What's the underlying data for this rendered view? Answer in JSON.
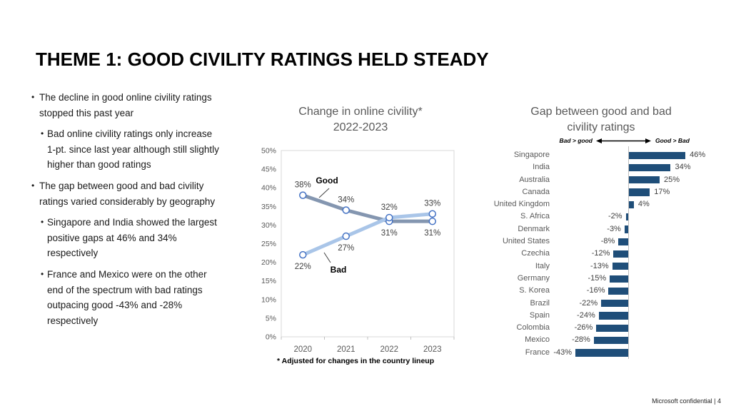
{
  "slide": {
    "title": {
      "bold": "THEME 1:",
      "rest": " GOOD CIVILITY RATINGS HELD STEADY"
    },
    "footer": "Microsoft confidential | 4"
  },
  "bullets": [
    {
      "level": 1,
      "text": "The decline in good online civility ratings stopped this past year"
    },
    {
      "level": 2,
      "text": "Bad online civility ratings only increase 1-pt. since last year although still slightly higher than good ratings"
    },
    {
      "level": 1,
      "text": "The gap between good and bad civility ratings varied considerably by geography"
    },
    {
      "level": 2,
      "text": "Singapore and India showed the largest positive gaps at 46% and 34% respectively"
    },
    {
      "level": 2,
      "text": "France and Mexico were on the other end of the spectrum with bad ratings outpacing good -43% and -28% respectively"
    }
  ],
  "chart_data": [
    {
      "type": "line",
      "title": "Change in online civility*",
      "subtitle": "2022-2023",
      "x": [
        "2020",
        "2021",
        "2022",
        "2023"
      ],
      "series": [
        {
          "name": "Good",
          "values": [
            38,
            34,
            31,
            31
          ],
          "label_side": [
            "above",
            "above",
            "below",
            "below"
          ],
          "color": "#8496B0"
        },
        {
          "name": "Bad",
          "values": [
            22,
            27,
            32,
            33
          ],
          "label_side": [
            "below",
            "below",
            "above",
            "above"
          ],
          "color": "#A9C5E8"
        }
      ],
      "ylim": [
        0,
        50
      ],
      "ytick_step": 5,
      "value_suffix": "%",
      "marker_color": "#4472C4",
      "grid": false,
      "legend_position": "inline-annotations",
      "footnote": "* Adjusted for changes in the country lineup"
    },
    {
      "type": "bar",
      "orientation": "horizontal",
      "title": "Gap between good and bad",
      "subtitle": "civility ratings",
      "direction_legend": {
        "left": "Bad > good",
        "right": "Good > Bad"
      },
      "categories": [
        "Singapore",
        "India",
        "Australia",
        "Canada",
        "United Kingdom",
        "S. Africa",
        "Denmark",
        "United States",
        "Czechia",
        "Italy",
        "Germany",
        "S. Korea",
        "Brazil",
        "Spain",
        "Colombia",
        "Mexico",
        "France"
      ],
      "values": [
        46,
        34,
        25,
        17,
        4,
        -2,
        -3,
        -8,
        -12,
        -13,
        -15,
        -16,
        -22,
        -24,
        -26,
        -28,
        -43
      ],
      "value_suffix": "%",
      "xlim": [
        -50,
        50
      ],
      "bar_color": "#1F4E79"
    }
  ]
}
